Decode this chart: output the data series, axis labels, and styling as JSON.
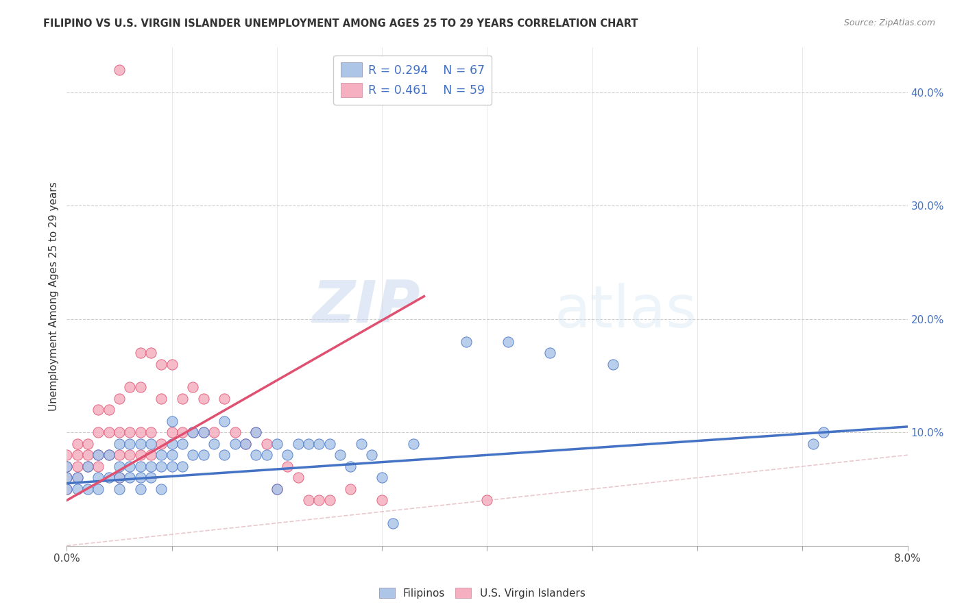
{
  "title": "FILIPINO VS U.S. VIRGIN ISLANDER UNEMPLOYMENT AMONG AGES 25 TO 29 YEARS CORRELATION CHART",
  "source": "Source: ZipAtlas.com",
  "ylabel": "Unemployment Among Ages 25 to 29 years",
  "xlim": [
    0.0,
    0.08
  ],
  "ylim": [
    0.0,
    0.44
  ],
  "xticks": [
    0.0,
    0.01,
    0.02,
    0.03,
    0.04,
    0.05,
    0.06,
    0.07,
    0.08
  ],
  "xtick_labels": [
    "0.0%",
    "",
    "",
    "",
    "",
    "",
    "",
    "",
    "8.0%"
  ],
  "yticks_right": [
    0.0,
    0.1,
    0.2,
    0.3,
    0.4
  ],
  "ytick_right_labels": [
    "",
    "10.0%",
    "20.0%",
    "30.0%",
    "40.0%"
  ],
  "legend_r1": "R = 0.294",
  "legend_n1": "N = 67",
  "legend_r2": "R = 0.461",
  "legend_n2": "N = 59",
  "color_filipino": "#adc6e8",
  "color_virgin": "#f5afc0",
  "color_line_filipino": "#4472c4",
  "color_line_virgin": "#e05070",
  "color_diag": "#cccccc",
  "color_grid": "#cccccc",
  "axis_label_color": "#4472c4",
  "watermark_zip": "ZIP",
  "watermark_atlas": "atlas",
  "filipino_x": [
    0.0,
    0.0,
    0.0,
    0.001,
    0.001,
    0.002,
    0.002,
    0.003,
    0.003,
    0.003,
    0.004,
    0.004,
    0.005,
    0.005,
    0.005,
    0.005,
    0.006,
    0.006,
    0.006,
    0.007,
    0.007,
    0.007,
    0.007,
    0.008,
    0.008,
    0.008,
    0.009,
    0.009,
    0.009,
    0.01,
    0.01,
    0.01,
    0.01,
    0.011,
    0.011,
    0.012,
    0.012,
    0.013,
    0.013,
    0.014,
    0.015,
    0.015,
    0.016,
    0.017,
    0.018,
    0.018,
    0.019,
    0.02,
    0.02,
    0.021,
    0.022,
    0.023,
    0.024,
    0.025,
    0.026,
    0.027,
    0.028,
    0.029,
    0.03,
    0.031,
    0.033,
    0.038,
    0.042,
    0.046,
    0.052,
    0.071,
    0.072
  ],
  "filipino_y": [
    0.05,
    0.06,
    0.07,
    0.05,
    0.06,
    0.05,
    0.07,
    0.05,
    0.06,
    0.08,
    0.06,
    0.08,
    0.05,
    0.06,
    0.07,
    0.09,
    0.06,
    0.07,
    0.09,
    0.05,
    0.06,
    0.07,
    0.09,
    0.06,
    0.07,
    0.09,
    0.05,
    0.07,
    0.08,
    0.07,
    0.08,
    0.09,
    0.11,
    0.07,
    0.09,
    0.08,
    0.1,
    0.08,
    0.1,
    0.09,
    0.08,
    0.11,
    0.09,
    0.09,
    0.08,
    0.1,
    0.08,
    0.05,
    0.09,
    0.08,
    0.09,
    0.09,
    0.09,
    0.09,
    0.08,
    0.07,
    0.09,
    0.08,
    0.06,
    0.02,
    0.09,
    0.18,
    0.18,
    0.17,
    0.16,
    0.09,
    0.1
  ],
  "virgin_x": [
    0.0,
    0.0,
    0.0,
    0.0,
    0.001,
    0.001,
    0.001,
    0.001,
    0.002,
    0.002,
    0.002,
    0.003,
    0.003,
    0.003,
    0.003,
    0.004,
    0.004,
    0.004,
    0.005,
    0.005,
    0.005,
    0.005,
    0.005,
    0.006,
    0.006,
    0.006,
    0.007,
    0.007,
    0.007,
    0.007,
    0.008,
    0.008,
    0.008,
    0.009,
    0.009,
    0.009,
    0.01,
    0.01,
    0.011,
    0.011,
    0.012,
    0.012,
    0.013,
    0.013,
    0.014,
    0.015,
    0.016,
    0.017,
    0.018,
    0.019,
    0.02,
    0.021,
    0.022,
    0.023,
    0.024,
    0.025,
    0.027,
    0.03,
    0.04
  ],
  "virgin_y": [
    0.05,
    0.06,
    0.07,
    0.08,
    0.06,
    0.07,
    0.08,
    0.09,
    0.07,
    0.08,
    0.09,
    0.07,
    0.08,
    0.1,
    0.12,
    0.08,
    0.1,
    0.12,
    0.06,
    0.08,
    0.1,
    0.13,
    0.42,
    0.08,
    0.1,
    0.14,
    0.08,
    0.1,
    0.14,
    0.17,
    0.08,
    0.1,
    0.17,
    0.09,
    0.13,
    0.16,
    0.1,
    0.16,
    0.1,
    0.13,
    0.1,
    0.14,
    0.1,
    0.13,
    0.1,
    0.13,
    0.1,
    0.09,
    0.1,
    0.09,
    0.05,
    0.07,
    0.06,
    0.04,
    0.04,
    0.04,
    0.05,
    0.04,
    0.04
  ],
  "fil_trend_x0": 0.0,
  "fil_trend_x1": 0.08,
  "fil_trend_y0": 0.055,
  "fil_trend_y1": 0.105,
  "vir_trend_x0": 0.0,
  "vir_trend_x1": 0.034,
  "vir_trend_y0": 0.04,
  "vir_trend_y1": 0.22
}
